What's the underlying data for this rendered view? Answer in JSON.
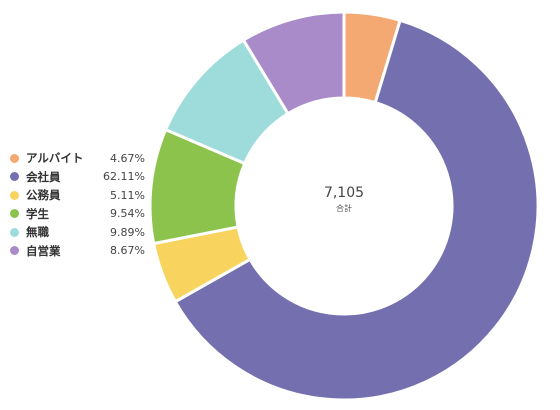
{
  "chart_data": {
    "type": "pie",
    "variant": "donut",
    "center_value": "7,105",
    "center_label": "合計",
    "legend_position": "left",
    "slices": [
      {
        "label": "アルバイト",
        "value": 4.67,
        "display": "4.67%",
        "color": "#f4a973"
      },
      {
        "label": "会社員",
        "value": 62.11,
        "display": "62.11%",
        "color": "#7470af"
      },
      {
        "label": "公務員",
        "value": 5.11,
        "display": "5.11%",
        "color": "#f8d45e"
      },
      {
        "label": "学生",
        "value": 9.54,
        "display": "9.54%",
        "color": "#8cc34d"
      },
      {
        "label": "無職",
        "value": 9.89,
        "display": "9.89%",
        "color": "#9edcdc"
      },
      {
        "label": "自営業",
        "value": 8.67,
        "display": "8.67%",
        "color": "#a98bc9"
      }
    ]
  }
}
